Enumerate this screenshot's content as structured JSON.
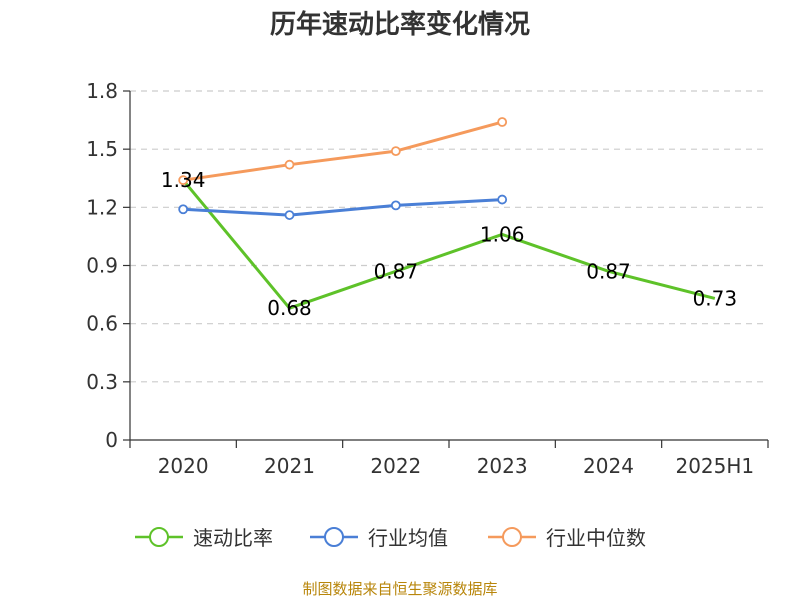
{
  "chart_data": {
    "type": "line",
    "title": "历年速动比率变化情况",
    "categories": [
      "2020",
      "2021",
      "2022",
      "2023",
      "2024",
      "2025H1"
    ],
    "yticks": [
      "0",
      "0.3",
      "0.6",
      "0.9",
      "1.2",
      "1.5",
      "1.8"
    ],
    "ylim": [
      0,
      1.8
    ],
    "grid": true,
    "legend_position": "bottom",
    "series": [
      {
        "name": "速动比率",
        "color": "#5ec229",
        "values": [
          1.34,
          0.68,
          0.87,
          1.06,
          0.87,
          0.73
        ],
        "labels": [
          "1.34",
          "0.68",
          "0.87",
          "1.06",
          "0.87",
          "0.73"
        ],
        "show_markers_all": false
      },
      {
        "name": "行业均值",
        "color": "#4a7fd6",
        "values": [
          1.19,
          1.16,
          1.21,
          1.24,
          null,
          null
        ]
      },
      {
        "name": "行业中位数",
        "color": "#f59a5c",
        "values": [
          1.34,
          1.42,
          1.49,
          1.64,
          null,
          null
        ]
      }
    ]
  },
  "source": "制图数据来自恒生聚源数据库"
}
